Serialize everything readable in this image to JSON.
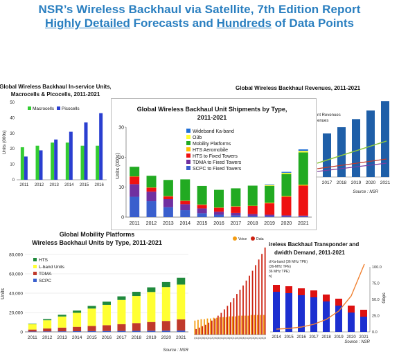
{
  "header": {
    "line1": "NSR’s Wireless Backhaul via Satellite, 7th Edition Report",
    "line2_a": "Highly Detailed",
    "line2_b": " Forecasts and ",
    "line2_c": "Hundreds",
    "line2_d": " of Data Points"
  },
  "colors": {
    "header_blue": "#2a7fc0",
    "macro_green": "#33cc33",
    "pico_blue": "#2a3fd0",
    "wideband_ka": "#1f6fd6",
    "o3b": "#ffff33",
    "mobility": "#22aa22",
    "hts_aero": "#ffc000",
    "hts_fixed": "#ee1111",
    "tdma_fixed": "#7030a0",
    "scpc_fixed": "#3a5fcd"
  },
  "chart_data": [
    {
      "type": "bar",
      "title_line1": "Global Wireless Backhaul In-service Units,",
      "title_line2": "Macrocells & Picocells, 2011-2021",
      "ylabel": "Units (000s)",
      "ylim": [
        0,
        50
      ],
      "yticks": [
        "0",
        "10",
        "20",
        "30",
        "40",
        "50"
      ],
      "categories": [
        "2011",
        "2012",
        "2013",
        "2014",
        "2015",
        "2016"
      ],
      "series": [
        {
          "name": "Macrocells",
          "values": [
            21,
            22,
            24,
            24,
            22,
            22
          ]
        },
        {
          "name": "Picocells",
          "values": [
            15,
            19,
            26,
            31,
            37,
            43
          ]
        }
      ]
    },
    {
      "type": "bar",
      "stacked": true,
      "title_line1": "Global Wireless Backhaul Unit Shipments by Type,",
      "title_line2": "2011-2021",
      "ylabel": "Units (000s)",
      "ylim": [
        0,
        30
      ],
      "yticks": [
        "0",
        "10",
        "20",
        "30"
      ],
      "categories": [
        "2011",
        "2012",
        "2013",
        "2014",
        "2015",
        "2016",
        "2017",
        "2018",
        "2019",
        "2020",
        "2021"
      ],
      "series": [
        {
          "name": "SCPC to Fixed Towers",
          "values": [
            6.8,
            5.3,
            3.3,
            2.3,
            1.3,
            0.8,
            0.6,
            0.4,
            0.3,
            0.2,
            0.2
          ]
        },
        {
          "name": "TDMA to Fixed Towers",
          "values": [
            4.2,
            3.2,
            2.7,
            2.0,
            1.6,
            1.0,
            0.8,
            0.6,
            0.5,
            0.4,
            0.3
          ]
        },
        {
          "name": "HTS to Fixed Towers",
          "values": [
            2.5,
            1.3,
            0.9,
            1.1,
            1.2,
            1.3,
            2.1,
            2.7,
            3.8,
            6.2,
            10.0
          ]
        },
        {
          "name": "HTS Aeromobile",
          "values": [
            0.1,
            0.1,
            0.1,
            0.1,
            0.1,
            0.1,
            0.1,
            0.1,
            0.2,
            0.2,
            0.3
          ]
        },
        {
          "name": "Mobility Platforms",
          "values": [
            3.2,
            3.9,
            5.4,
            7.1,
            6.2,
            5.9,
            6.0,
            6.7,
            5.6,
            7.4,
            10.8
          ]
        },
        {
          "name": "O3b",
          "values": [
            0,
            0,
            0,
            0,
            0,
            0,
            0,
            0,
            0.3,
            0.4,
            0.5
          ]
        },
        {
          "name": "Wideband Ka-band",
          "values": [
            0,
            0,
            0,
            0,
            0,
            0,
            0,
            0,
            0.2,
            0.3,
            0.5
          ]
        }
      ]
    },
    {
      "type": "bar",
      "title": "Global Wireless Backhaul Revenues, 2011-2021",
      "legend_partial": [
        "nt Revenues",
        "enues"
      ],
      "categories": [
        "2017",
        "2018",
        "2019",
        "2020",
        "2021"
      ],
      "source": "Source : NSR"
    },
    {
      "type": "bar",
      "stacked": true,
      "title_line1": "Global Mobility Platforms",
      "title_line2": "Wireless Backhaul Units by Type, 2011-2021",
      "ylabel": "Units",
      "ylim": [
        0,
        80000
      ],
      "yticks": [
        "0",
        "20,000",
        "40,000",
        "60,000",
        "80,000"
      ],
      "categories": [
        "2011",
        "2012",
        "2013",
        "2014",
        "2015",
        "2016",
        "2017",
        "2018",
        "2019",
        "2020",
        "2021"
      ],
      "series": [
        {
          "name": "SCPC",
          "values": [
            400,
            500,
            600,
            700,
            800,
            900,
            1000,
            1100,
            1200,
            1300,
            1400
          ]
        },
        {
          "name": "TDMA",
          "values": [
            2000,
            3000,
            3800,
            4500,
            5300,
            6000,
            7000,
            8000,
            9000,
            10000,
            11500
          ]
        },
        {
          "name": "L-band Units",
          "values": [
            5500,
            8500,
            11500,
            14500,
            18000,
            21000,
            25000,
            28000,
            31000,
            35000,
            36000
          ]
        },
        {
          "name": "HTS",
          "values": [
            500,
            1200,
            1800,
            2300,
            2700,
            3300,
            3700,
            4300,
            4800,
            5200,
            7000
          ]
        }
      ],
      "source": "Source : NSR"
    },
    {
      "type": "bar",
      "legend": [
        "Voice",
        "Data"
      ],
      "x_first_row": [
        "Q1",
        "Q2",
        "Q3",
        "Q4",
        "Q1",
        "Q2",
        "Q3",
        "Q4",
        "Q1",
        "Q2",
        "Q3",
        "Q4",
        "Q1",
        "Q2",
        "Q3",
        "Q4",
        "Q1",
        "Q2",
        "Q3",
        "Q4",
        "Q1",
        "Q2",
        "Q3"
      ],
      "series": [
        {
          "name": "Voice",
          "values": [
            20,
            21,
            22,
            22,
            23,
            23,
            24,
            24,
            25,
            25,
            25,
            26,
            26,
            26,
            27,
            27,
            27,
            27,
            28,
            28,
            28,
            28,
            28
          ]
        },
        {
          "name": "Data",
          "values": [
            8,
            10,
            12,
            14,
            17,
            20,
            23,
            27,
            31,
            36,
            41,
            46,
            52,
            58,
            64,
            70,
            77,
            84,
            91,
            99,
            107,
            115,
            124
          ]
        }
      ]
    },
    {
      "type": "bar",
      "title_line1": "ireless Backhaul Transponder and",
      "title_line2": "dwidth Demand, 2011-2021",
      "legend_partial": [
        "d Ka-band (36 MHz TPE)",
        "(36-MHz TPE)",
        "36 MHz TPE)",
        "n)"
      ],
      "y2label": "Gbps",
      "y2ticks": [
        "0.0",
        "25.0",
        "50.0",
        "75.0",
        "100.0"
      ],
      "categories": [
        "2014",
        "2015",
        "2016",
        "2017",
        "2018",
        "2019",
        "2020",
        "2021"
      ],
      "source": "Source : NSR"
    }
  ]
}
